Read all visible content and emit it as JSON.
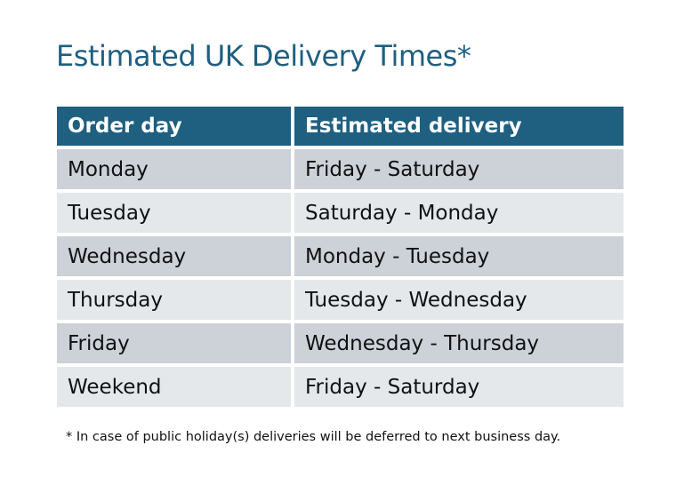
{
  "title": "Estimated UK Delivery Times*",
  "table": {
    "headers": [
      "Order day",
      "Estimated delivery"
    ],
    "rows": [
      [
        "Monday",
        "Friday - Saturday"
      ],
      [
        "Tuesday",
        "Saturday - Monday"
      ],
      [
        "Wednesday",
        "Monday - Tuesday"
      ],
      [
        "Thursday",
        "Tuesday - Wednesday"
      ],
      [
        "Friday",
        "Wednesday - Thursday"
      ],
      [
        "Weekend",
        "Friday - Saturday"
      ]
    ]
  },
  "footnote": "* In case of public holiday(s) deliveries will be deferred to next business day.",
  "colors": {
    "header": "#1F5F80",
    "row_dark": "#CDD1D8",
    "row_light": "#E5E8EB",
    "title": "#1F5F80"
  }
}
